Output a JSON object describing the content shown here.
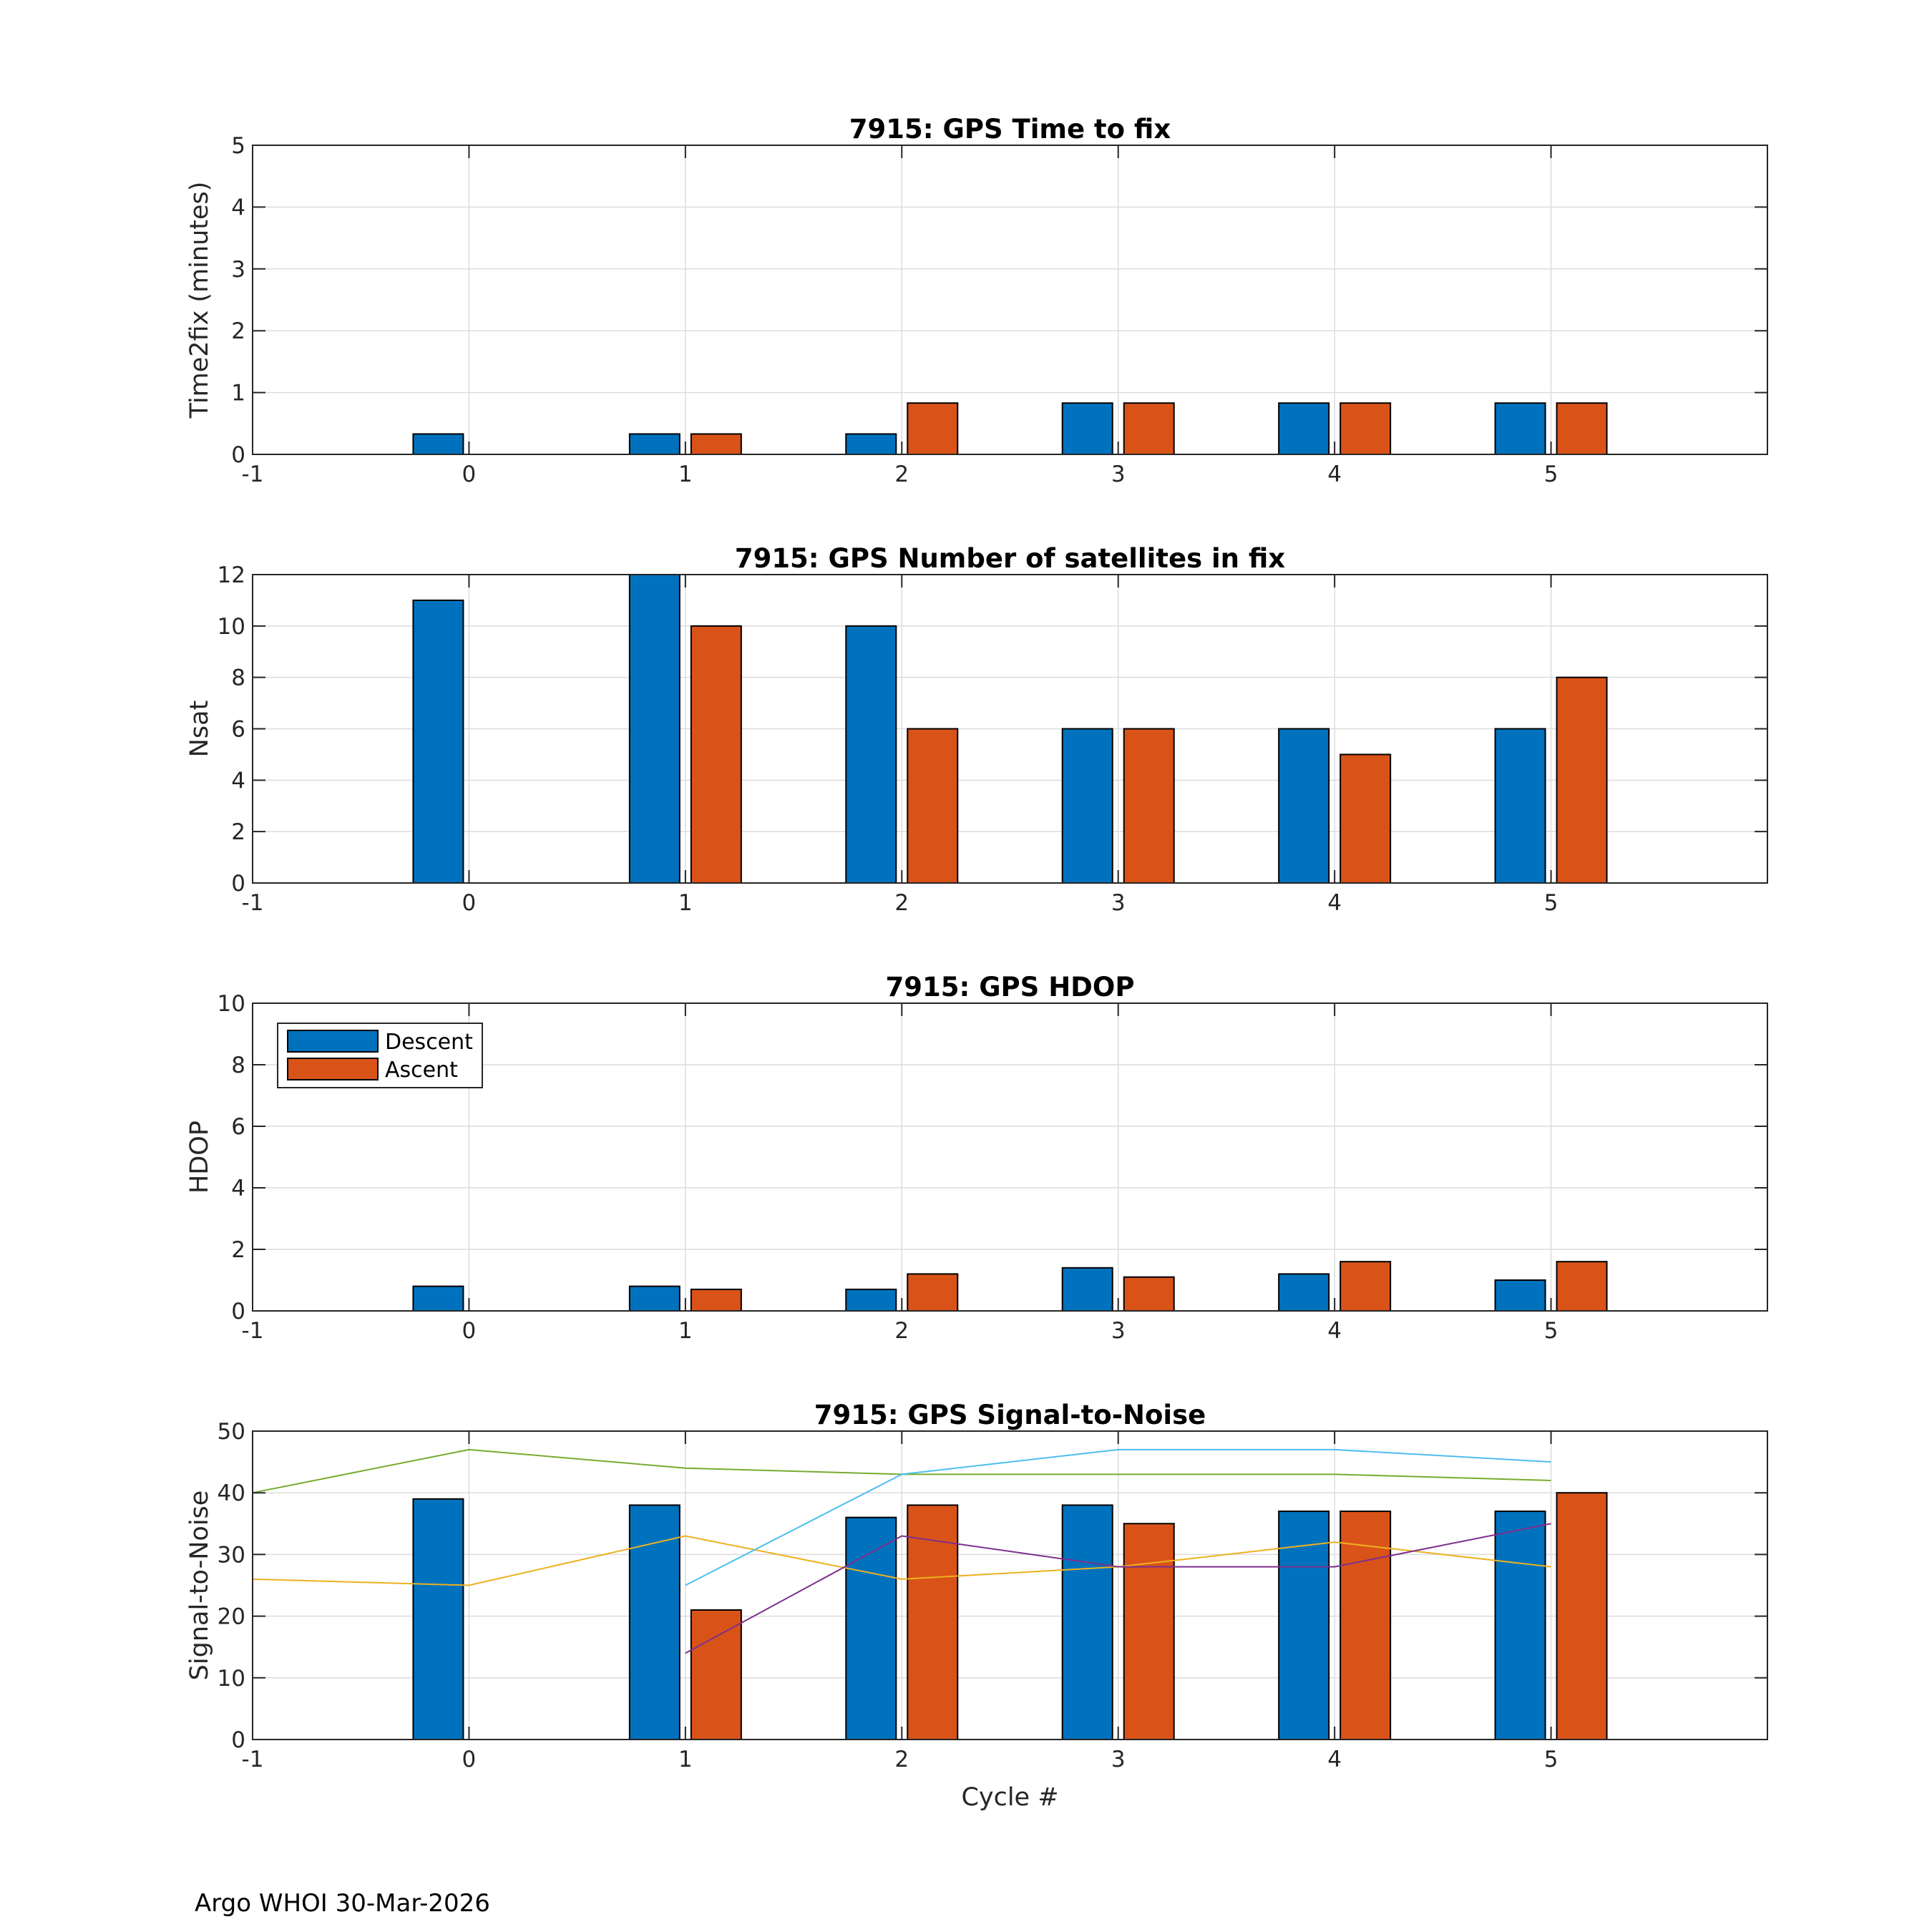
{
  "footer": "Argo WHOI 30-Mar-2026",
  "colors": {
    "descent": "#0072BD",
    "ascent": "#D95319",
    "grid": "#DCDCDC",
    "axis": "#262626"
  },
  "chart_data": [
    {
      "type": "bar",
      "title": "7915: GPS Time to fix",
      "ylabel": "Time2fix (minutes)",
      "xlabel": "",
      "xlim": [
        -1,
        6
      ],
      "ylim": [
        0,
        5
      ],
      "xticks": [
        "-1",
        "0",
        "1",
        "2",
        "3",
        "4",
        "5"
      ],
      "yticks": [
        "0",
        "1",
        "2",
        "3",
        "4",
        "5"
      ],
      "categories": [
        0,
        1,
        2,
        3,
        4,
        5
      ],
      "series": [
        {
          "name": "Descent",
          "color": "#0072BD",
          "values": [
            0.33,
            0.33,
            0.33,
            0.83,
            0.83,
            0.83
          ]
        },
        {
          "name": "Ascent",
          "color": "#D95319",
          "values": [
            0,
            0.33,
            0.83,
            0.83,
            0.83,
            0.83
          ]
        }
      ],
      "grid": true
    },
    {
      "type": "bar",
      "title": "7915: GPS Number of satellites in fix",
      "ylabel": "Nsat",
      "xlabel": "",
      "xlim": [
        -1,
        6
      ],
      "ylim": [
        0,
        12
      ],
      "xticks": [
        "-1",
        "0",
        "1",
        "2",
        "3",
        "4",
        "5"
      ],
      "yticks": [
        "0",
        "2",
        "4",
        "6",
        "8",
        "10",
        "12"
      ],
      "categories": [
        0,
        1,
        2,
        3,
        4,
        5
      ],
      "series": [
        {
          "name": "Descent",
          "color": "#0072BD",
          "values": [
            11,
            12,
            10,
            6,
            6,
            6
          ]
        },
        {
          "name": "Ascent",
          "color": "#D95319",
          "values": [
            0,
            10,
            6,
            6,
            5,
            8
          ]
        }
      ],
      "grid": true
    },
    {
      "type": "bar",
      "title": "7915: GPS HDOP",
      "ylabel": "HDOP",
      "xlabel": "",
      "xlim": [
        -1,
        6
      ],
      "ylim": [
        0,
        10
      ],
      "xticks": [
        "-1",
        "0",
        "1",
        "2",
        "3",
        "4",
        "5"
      ],
      "yticks": [
        "0",
        "2",
        "4",
        "6",
        "8",
        "10"
      ],
      "categories": [
        0,
        1,
        2,
        3,
        4,
        5
      ],
      "series": [
        {
          "name": "Descent",
          "color": "#0072BD",
          "values": [
            0.8,
            0.8,
            0.7,
            1.4,
            1.2,
            1.0
          ]
        },
        {
          "name": "Ascent",
          "color": "#D95319",
          "values": [
            0,
            0.7,
            1.2,
            1.1,
            1.6,
            1.6
          ]
        }
      ],
      "legend": {
        "position": "top-left",
        "entries": [
          "Descent",
          "Ascent"
        ]
      },
      "grid": true
    },
    {
      "type": "bar",
      "title": "7915: GPS Signal-to-Noise",
      "ylabel": "Signal-to-Noise",
      "xlabel": "Cycle #",
      "xlim": [
        -1,
        6
      ],
      "ylim": [
        0,
        50
      ],
      "xticks": [
        "-1",
        "0",
        "1",
        "2",
        "3",
        "4",
        "5"
      ],
      "yticks": [
        "0",
        "10",
        "20",
        "30",
        "40",
        "50"
      ],
      "categories": [
        0,
        1,
        2,
        3,
        4,
        5
      ],
      "series": [
        {
          "name": "Descent",
          "color": "#0072BD",
          "values": [
            39,
            38,
            36,
            38,
            37,
            37
          ]
        },
        {
          "name": "Ascent",
          "color": "#D95319",
          "values": [
            0,
            21,
            38,
            35,
            37,
            40
          ]
        }
      ],
      "lines": [
        {
          "color": "#77AC30",
          "x": [
            -1,
            0,
            1,
            2,
            3,
            4,
            5
          ],
          "y": [
            40,
            47,
            44,
            43,
            43,
            43,
            42
          ]
        },
        {
          "color": "#EDB120",
          "x": [
            -1,
            0,
            1,
            2,
            3,
            4,
            5
          ],
          "y": [
            26,
            25,
            33,
            26,
            28,
            32,
            28
          ]
        },
        {
          "color": "#4DBEEE",
          "x": [
            1,
            2,
            3,
            4,
            5
          ],
          "y": [
            25,
            43,
            47,
            47,
            45
          ]
        },
        {
          "color": "#7E2F8E",
          "x": [
            1,
            2,
            3,
            4,
            5
          ],
          "y": [
            14,
            33,
            28,
            28,
            35
          ]
        }
      ],
      "grid": true
    }
  ]
}
